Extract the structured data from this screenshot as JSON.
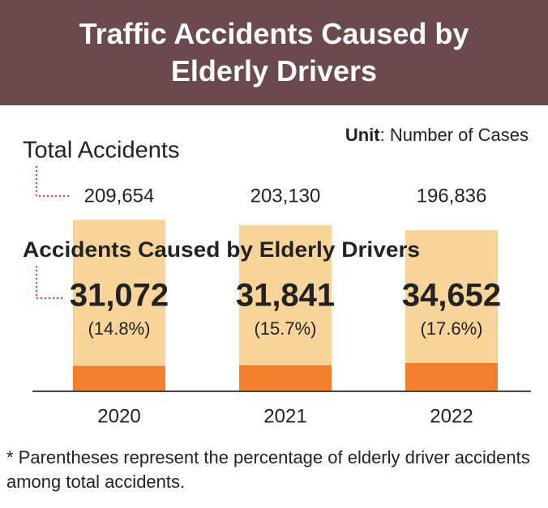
{
  "chart_data": {
    "type": "overlap-bar",
    "title": "Traffic Accidents Caused by Elderly Drivers",
    "unit_label": "Unit",
    "unit": ": Number of Cases",
    "categories": [
      "2020",
      "2021",
      "2022"
    ],
    "series": [
      {
        "name": "Total Accidents",
        "color": "#f9d49a",
        "values": [
          209654,
          203130,
          196836
        ],
        "value_labels": [
          "209,654",
          "203,130",
          "196,836"
        ]
      },
      {
        "name": "Accidents Caused by Elderly Drivers",
        "color": "#f07f2e",
        "values": [
          31072,
          31841,
          34652
        ],
        "value_labels": [
          "31,072",
          "31,841",
          "34,652"
        ],
        "share_labels": [
          "(14.8%)",
          "(15.7%)",
          "(17.6%)"
        ]
      }
    ],
    "footnote": "* Parentheses represent the percentage of elderly driver accidents among total accidents."
  }
}
